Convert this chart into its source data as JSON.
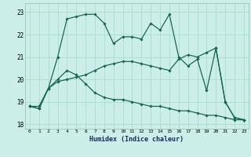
{
  "xlabel": "Humidex (Indice chaleur)",
  "ylabel": "",
  "xlim": [
    -0.5,
    23.5
  ],
  "ylim": [
    17.8,
    23.4
  ],
  "bg_color": "#cceee8",
  "grid_color": "#aaddcc",
  "line_color": "#1a6655",
  "xticks": [
    0,
    1,
    2,
    3,
    4,
    5,
    6,
    7,
    8,
    9,
    10,
    11,
    12,
    13,
    14,
    15,
    16,
    17,
    18,
    19,
    20,
    21,
    22,
    23
  ],
  "yticks": [
    18,
    19,
    20,
    21,
    22,
    23
  ],
  "series": [
    [
      18.8,
      18.7,
      19.6,
      21.0,
      22.7,
      22.8,
      22.9,
      22.9,
      22.5,
      21.6,
      21.9,
      21.9,
      21.8,
      22.5,
      22.2,
      22.9,
      21.0,
      20.6,
      20.9,
      19.5,
      21.4,
      19.0,
      18.3,
      18.2
    ],
    [
      18.8,
      18.8,
      19.6,
      19.9,
      20.0,
      20.1,
      20.2,
      20.4,
      20.6,
      20.7,
      20.8,
      20.8,
      20.7,
      20.6,
      20.5,
      20.4,
      20.9,
      21.1,
      21.0,
      21.2,
      21.4,
      19.0,
      18.3,
      18.2
    ],
    [
      18.8,
      18.7,
      19.6,
      20.0,
      20.4,
      20.2,
      19.8,
      19.4,
      19.2,
      19.1,
      19.1,
      19.0,
      18.9,
      18.8,
      18.8,
      18.7,
      18.6,
      18.6,
      18.5,
      18.4,
      18.4,
      18.3,
      18.2,
      18.2
    ]
  ]
}
